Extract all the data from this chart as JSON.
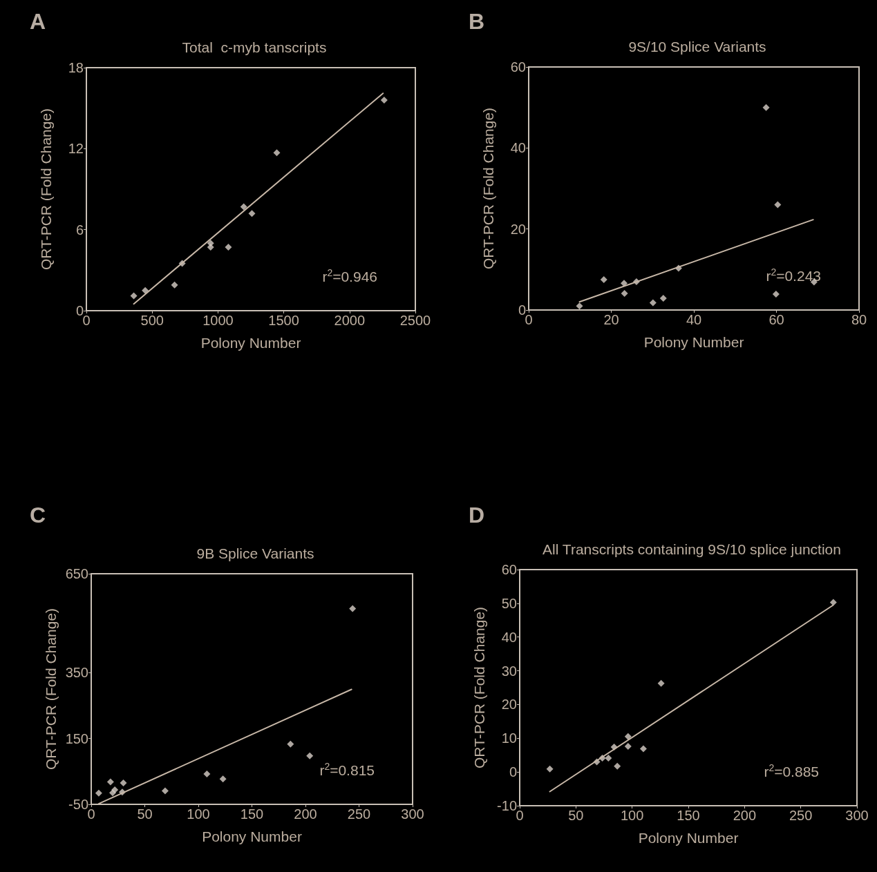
{
  "chart_data": [
    {
      "type": "scatter",
      "title": "Total  c-myb tanscripts",
      "xlabel": "Polony Number",
      "ylabel": "QRT-PCR (Fold Change)",
      "annotations": [
        "A",
        "r$^{2}$=0.946"
      ],
      "xlim": [
        0,
        2500
      ],
      "xticks": [
        0,
        500,
        1000,
        1500,
        2000,
        2500
      ],
      "ylim": [
        0,
        18
      ],
      "yticks": [
        0,
        6,
        12,
        18
      ],
      "grid": false,
      "marker": "diamond",
      "series": [
        {
          "color": "#d8d0c8",
          "x": [
            360,
            447,
            670,
            728,
            944,
            944,
            1079,
            1196,
            1258,
            1447,
            2263
          ],
          "values": [
            1.1,
            1.5,
            1.9,
            3.5,
            5.0,
            4.7,
            4.7,
            7.7,
            7.2,
            11.7,
            15.6
          ]
        },
        {
          "type": "line",
          "color": "#c8b8a8",
          "marker": "none",
          "line_style": "solid",
          "x": [
            360,
            2254
          ],
          "values": [
            0.5,
            16.1
          ]
        }
      ]
    },
    {
      "type": "scatter",
      "title": "9S/10 Splice Variants",
      "xlabel": "Polony Number",
      "ylabel": "QRT-PCR (Fold Change)",
      "annotations": [
        "B",
        "r$^{2}$=0.243"
      ],
      "xlim": [
        0,
        80
      ],
      "xticks": [
        0,
        20,
        40,
        60,
        80
      ],
      "ylim": [
        0,
        60
      ],
      "yticks": [
        0,
        20,
        40,
        60
      ],
      "grid": false,
      "marker": "diamond",
      "series": [
        {
          "color": "#d8d0c8",
          "x": [
            12.3,
            18.2,
            23.1,
            23.2,
            26.1,
            30.1,
            32.6,
            36.3,
            57.5,
            60.3,
            59.9,
            69.1
          ],
          "values": [
            1.0,
            7.5,
            6.6,
            4.1,
            7.0,
            1.8,
            2.9,
            10.3,
            50.0,
            26.0,
            3.9,
            6.9
          ]
        },
        {
          "type": "line",
          "color": "#c8b8a8",
          "marker": "none",
          "line_style": "solid",
          "x": [
            12.3,
            68.9
          ],
          "values": [
            2.0,
            22.3
          ]
        }
      ]
    },
    {
      "type": "scatter",
      "title": "9B Splice Variants",
      "xlabel": "Polony Number",
      "ylabel": "QRT-PCR (Fold Change)",
      "annotations": [
        "C",
        "r$^{2}$=0.815"
      ],
      "xlim": [
        0,
        300
      ],
      "xticks": [
        0,
        50,
        100,
        150,
        200,
        250,
        300
      ],
      "ylim": [
        -50,
        650
      ],
      "yticks": [
        -50,
        150,
        350,
        650
      ],
      "grid": false,
      "marker": "diamond",
      "series": [
        {
          "color": "#d8d0c8",
          "x": [
            7,
            18,
            22,
            20,
            30,
            29,
            69,
            108,
            123,
            186,
            204,
            244
          ],
          "values": [
            -16,
            18,
            -6,
            -15,
            15,
            -13,
            -9,
            42,
            27,
            133,
            97,
            544
          ]
        },
        {
          "type": "line",
          "color": "#c8b8a8",
          "marker": "none",
          "line_style": "solid",
          "x": [
            7,
            243
          ],
          "values": [
            -48,
            299
          ]
        }
      ]
    },
    {
      "type": "scatter",
      "title": "All Transcripts containing 9S/10 splice junction",
      "xlabel": "Polony Number",
      "ylabel": "QRT-PCR (Fold Change)",
      "annotations": [
        "D",
        "r$^{2}$=0.885"
      ],
      "xlim": [
        0,
        300
      ],
      "xticks": [
        0,
        50,
        100,
        150,
        200,
        250,
        300
      ],
      "ylim": [
        -10,
        60
      ],
      "yticks": [
        -10,
        0,
        10,
        20,
        30,
        40,
        50,
        60
      ],
      "grid": false,
      "marker": "diamond",
      "series": [
        {
          "color": "#d8d0c8",
          "x": [
            26.8,
            68.6,
            73.5,
            78.9,
            84,
            86.8,
            96.4,
            96.4,
            110,
            125.8,
            279
          ],
          "values": [
            0.9,
            3.0,
            4.1,
            4.1,
            7.4,
            1.7,
            10.5,
            7.6,
            6.9,
            26.3,
            50.3
          ]
        },
        {
          "type": "line",
          "color": "#c8b8a8",
          "marker": "none",
          "line_style": "solid",
          "x": [
            26.8,
            278.6
          ],
          "values": [
            -5.8,
            49.4
          ]
        }
      ]
    }
  ]
}
